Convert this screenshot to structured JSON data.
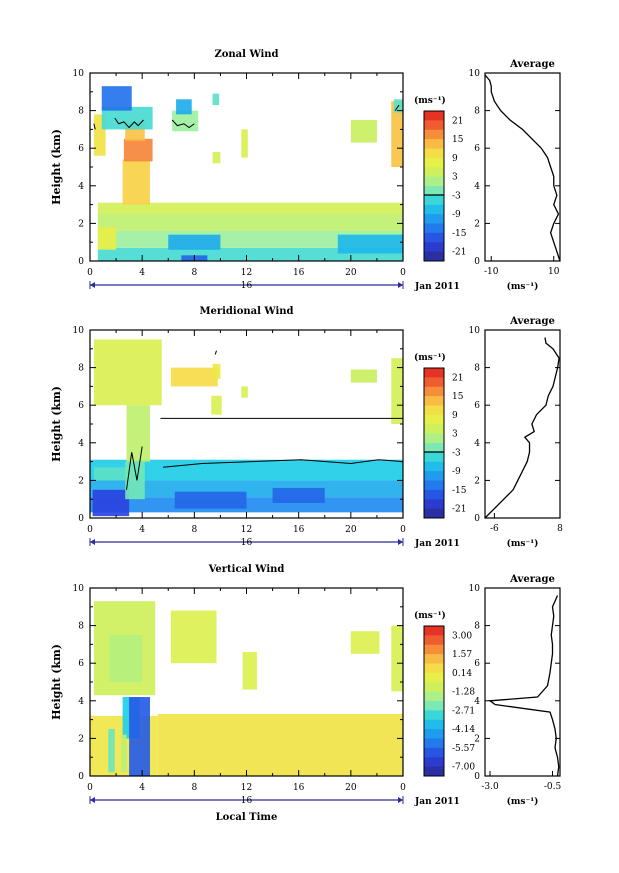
{
  "chart_data": [
    {
      "type": "heatmap",
      "title": "Zonal Wind",
      "ylabel": "Height (km)",
      "xlim": [
        0,
        24
      ],
      "ylim": [
        0,
        10
      ],
      "xticks": [
        "0",
        "4",
        "8",
        "12",
        "16",
        "20",
        "0"
      ],
      "yticks": [
        "0",
        "2",
        "4",
        "6",
        "8",
        "10"
      ],
      "date_label": "16",
      "date_suffix": "Jan 2011",
      "colorbar": {
        "unit": "(ms⁻¹)",
        "ticks": [
          "21",
          "15",
          "9",
          "3",
          "-3",
          "-9",
          "-15",
          "-21"
        ],
        "range": [
          -24,
          24
        ]
      },
      "patches": [
        {
          "x": [
            0.6,
            24
          ],
          "y": [
            0,
            0.7
          ],
          "v": -4
        },
        {
          "x": [
            0.6,
            24
          ],
          "y": [
            0.7,
            1.6
          ],
          "v": 0
        },
        {
          "x": [
            0.6,
            24
          ],
          "y": [
            1.6,
            2.5
          ],
          "v": 3
        },
        {
          "x": [
            0.6,
            24
          ],
          "y": [
            2.5,
            3.1
          ],
          "v": 5
        },
        {
          "x": [
            0.6,
            2
          ],
          "y": [
            0.6,
            1.8
          ],
          "v": 8
        },
        {
          "x": [
            6,
            10
          ],
          "y": [
            0.6,
            1.4
          ],
          "v": -9
        },
        {
          "x": [
            19,
            24
          ],
          "y": [
            0.4,
            1.4
          ],
          "v": -8
        },
        {
          "x": [
            2.5,
            4.6
          ],
          "y": [
            3.0,
            5.4
          ],
          "v": 12
        },
        {
          "x": [
            2.6,
            4.8
          ],
          "y": [
            5.3,
            6.5
          ],
          "v": 17
        },
        {
          "x": [
            2.7,
            4.2
          ],
          "y": [
            6.4,
            7.4
          ],
          "v": 13
        },
        {
          "x": [
            0.3,
            1.2
          ],
          "y": [
            5.6,
            7.8
          ],
          "v": 10
        },
        {
          "x": [
            0.9,
            4.8
          ],
          "y": [
            7.0,
            8.2
          ],
          "v": -4
        },
        {
          "x": [
            0.9,
            3.2
          ],
          "y": [
            8.0,
            9.3
          ],
          "v": -14
        },
        {
          "x": [
            6.3,
            8.3
          ],
          "y": [
            6.9,
            8.0
          ],
          "v": 0
        },
        {
          "x": [
            6.6,
            7.8
          ],
          "y": [
            7.8,
            8.6
          ],
          "v": -9
        },
        {
          "x": [
            9.4,
            9.9
          ],
          "y": [
            8.3,
            8.9
          ],
          "v": -3
        },
        {
          "x": [
            11.6,
            12.1
          ],
          "y": [
            5.5,
            7.0
          ],
          "v": 6
        },
        {
          "x": [
            9.4,
            10.0
          ],
          "y": [
            5.2,
            5.8
          ],
          "v": 5
        },
        {
          "x": [
            20,
            22
          ],
          "y": [
            6.3,
            7.5
          ],
          "v": 4
        },
        {
          "x": [
            23.1,
            24
          ],
          "y": [
            5.0,
            8.5
          ],
          "v": 13
        },
        {
          "x": [
            23.3,
            24
          ],
          "y": [
            7.9,
            8.6
          ],
          "v": -3
        },
        {
          "x": [
            7,
            9
          ],
          "y": [
            0,
            0.3
          ],
          "v": -15
        }
      ],
      "contours": [
        {
          "x": [
            1.9,
            2.2,
            2.6,
            3.0,
            3.4,
            3.7,
            4.1
          ],
          "y": [
            7.6,
            7.3,
            7.4,
            7.1,
            7.4,
            7.2,
            7.5
          ]
        },
        {
          "x": [
            6.3,
            6.7,
            7.2,
            7.6,
            8.0
          ],
          "y": [
            7.5,
            7.2,
            7.3,
            7.1,
            7.3
          ]
        },
        {
          "x": [
            0.3,
            0.4
          ],
          "y": [
            7.3,
            7.0
          ]
        },
        {
          "x": [
            23.4,
            23.7
          ],
          "y": [
            8.0,
            8.3
          ]
        }
      ],
      "average": {
        "xlabel": "(ms⁻¹)",
        "xlim": [
          -12,
          12
        ],
        "xticks": [
          "-10",
          "10"
        ],
        "profile_x": [
          12,
          11,
          10,
          9,
          10,
          11.5,
          10,
          11,
          10,
          10,
          9,
          8,
          6,
          3,
          0,
          -4,
          -7,
          -9,
          -10,
          -10,
          -10.5,
          -12
        ],
        "profile_y": [
          0,
          0.5,
          1,
          1.5,
          2,
          2.5,
          3,
          3.5,
          4,
          4.5,
          5,
          5.5,
          6,
          6.5,
          7,
          7.5,
          8,
          8.5,
          9,
          9.3,
          9.6,
          9.9
        ]
      }
    },
    {
      "type": "heatmap",
      "title": "Meridional Wind",
      "ylabel": "Height (km)",
      "xlim": [
        0,
        24
      ],
      "ylim": [
        0,
        10
      ],
      "xticks": [
        "0",
        "4",
        "8",
        "12",
        "16",
        "20",
        "0"
      ],
      "yticks": [
        "0",
        "2",
        "4",
        "6",
        "8",
        "10"
      ],
      "date_label": "16",
      "date_suffix": "Jan 2011",
      "colorbar": {
        "unit": "(ms⁻¹)",
        "ticks": [
          "21",
          "15",
          "9",
          "3",
          "-3",
          "-9",
          "-15",
          "-21"
        ],
        "range": [
          -24,
          24
        ]
      },
      "patches": [
        {
          "x": [
            0,
            24
          ],
          "y": [
            2.0,
            3.1
          ],
          "v": -6
        },
        {
          "x": [
            0,
            24
          ],
          "y": [
            1.1,
            2.0
          ],
          "v": -9
        },
        {
          "x": [
            0,
            24
          ],
          "y": [
            0.3,
            1.1
          ],
          "v": -12
        },
        {
          "x": [
            0.2,
            3.0
          ],
          "y": [
            0.1,
            1.5
          ],
          "v": -18
        },
        {
          "x": [
            6.5,
            12
          ],
          "y": [
            0.5,
            1.4
          ],
          "v": -15
        },
        {
          "x": [
            14,
            18
          ],
          "y": [
            0.8,
            1.6
          ],
          "v": -15
        },
        {
          "x": [
            0.3,
            3.2
          ],
          "y": [
            2.0,
            2.7
          ],
          "v": -3
        },
        {
          "x": [
            2.8,
            4.6
          ],
          "y": [
            3.0,
            6.0
          ],
          "v": 3
        },
        {
          "x": [
            2.7,
            4.2
          ],
          "y": [
            1.0,
            3.0
          ],
          "v": -2
        },
        {
          "x": [
            0.3,
            5.5
          ],
          "y": [
            6.0,
            9.5
          ],
          "v": 6
        },
        {
          "x": [
            6.2,
            9.8
          ],
          "y": [
            7.0,
            8.0
          ],
          "v": 11
        },
        {
          "x": [
            9.4,
            10.0
          ],
          "y": [
            7.4,
            8.2
          ],
          "v": 9
        },
        {
          "x": [
            9.3,
            10.1
          ],
          "y": [
            5.5,
            6.5
          ],
          "v": 6
        },
        {
          "x": [
            11.6,
            12.1
          ],
          "y": [
            6.4,
            7.0
          ],
          "v": 6
        },
        {
          "x": [
            20,
            22
          ],
          "y": [
            7.2,
            7.9
          ],
          "v": 4
        },
        {
          "x": [
            23.1,
            24
          ],
          "y": [
            5.0,
            8.5
          ],
          "v": 5
        }
      ],
      "contours": [
        {
          "x": [
            5.4,
            24
          ],
          "y": [
            5.3,
            5.3
          ]
        },
        {
          "x": [
            5.6,
            8.6,
            12.4,
            16.2,
            20.0,
            22.1,
            24.0
          ],
          "y": [
            2.7,
            2.9,
            3.0,
            3.1,
            2.9,
            3.1,
            3.0
          ]
        },
        {
          "x": [
            2.8,
            3.2,
            3.6,
            4.0
          ],
          "y": [
            1.5,
            3.5,
            2.0,
            3.8
          ]
        },
        {
          "x": [
            9.6,
            9.7
          ],
          "y": [
            8.7,
            8.9
          ]
        }
      ],
      "average": {
        "xlabel": "(ms⁻¹)",
        "xlim": [
          -8,
          8
        ],
        "xticks": [
          "-6",
          "8"
        ],
        "profile_x": [
          -8,
          -6,
          -4,
          -2,
          -1,
          0,
          1,
          1.5,
          1.5,
          0.5,
          2.5,
          2.0,
          3.0,
          5,
          5.5,
          6.5,
          7,
          7.5,
          7.8,
          6.5,
          5.0,
          4.8
        ],
        "profile_y": [
          0,
          0.5,
          1,
          1.5,
          2,
          2.5,
          3,
          3.5,
          4,
          4.3,
          4.6,
          5.0,
          5.5,
          6,
          6.5,
          7,
          7.5,
          8,
          8.5,
          9,
          9.3,
          9.6
        ]
      }
    },
    {
      "type": "heatmap",
      "title": "Vertical Wind",
      "ylabel": "Height (km)",
      "xlabel": "Local Time",
      "xlim": [
        0,
        24
      ],
      "ylim": [
        0,
        10
      ],
      "xticks": [
        "0",
        "4",
        "8",
        "12",
        "16",
        "20",
        "0"
      ],
      "yticks": [
        "0",
        "2",
        "4",
        "6",
        "8",
        "10"
      ],
      "date_label": "16",
      "date_suffix": "Jan 2011",
      "colorbar": {
        "unit": "(ms⁻¹)",
        "ticks": [
          "3.00",
          "1.57",
          "0.14",
          "-1.28",
          "-2.71",
          "-4.14",
          "-5.57",
          "-7.00"
        ],
        "range": [
          -7.7,
          3.7
        ]
      },
      "patches": [
        {
          "x": [
            0,
            5.2
          ],
          "y": [
            0,
            3.2
          ],
          "v": 0.2
        },
        {
          "x": [
            5.2,
            24
          ],
          "y": [
            0,
            3.3
          ],
          "v": 0.3
        },
        {
          "x": [
            0.3,
            5.0
          ],
          "y": [
            4.3,
            9.3
          ],
          "v": -0.9
        },
        {
          "x": [
            1.5,
            4.0
          ],
          "y": [
            5.0,
            7.5
          ],
          "v": -1.5
        },
        {
          "x": [
            2.5,
            3.8
          ],
          "y": [
            2.0,
            4.2
          ],
          "v": -3.4
        },
        {
          "x": [
            3.0,
            4.6
          ],
          "y": [
            0,
            4.2
          ],
          "v": -5.8
        },
        {
          "x": [
            1.4,
            1.9
          ],
          "y": [
            0.2,
            2.5
          ],
          "v": -2.5
        },
        {
          "x": [
            2.4,
            2.8
          ],
          "y": [
            0.2,
            2.2
          ],
          "v": -1.4
        },
        {
          "x": [
            6.2,
            9.7
          ],
          "y": [
            6.0,
            8.8
          ],
          "v": -0.5
        },
        {
          "x": [
            11.7,
            12.8
          ],
          "y": [
            4.6,
            6.6
          ],
          "v": -0.5
        },
        {
          "x": [
            20,
            22.2
          ],
          "y": [
            6.5,
            7.7
          ],
          "v": -0.5
        },
        {
          "x": [
            23.1,
            24
          ],
          "y": [
            4.5,
            8.0
          ],
          "v": -0.6
        }
      ],
      "contours": [],
      "average": {
        "xlabel": "(ms⁻¹)",
        "xlim": [
          -3.2,
          -0.2
        ],
        "xticks": [
          "-3.0",
          "-0.5"
        ],
        "profile_x": [
          -0.3,
          -0.25,
          -0.3,
          -0.4,
          -0.35,
          -0.4,
          -0.5,
          -0.6,
          -2.8,
          -3.0,
          -1.1,
          -0.7,
          -0.6,
          -0.55,
          -0.5,
          -0.5,
          -0.55,
          -0.5,
          -0.45,
          -0.5,
          -0.3
        ],
        "profile_y": [
          0,
          0.5,
          1,
          1.5,
          2,
          2.5,
          3,
          3.4,
          3.8,
          4.0,
          4.2,
          4.8,
          5.5,
          6,
          6.5,
          7,
          7.5,
          8,
          8.5,
          9,
          9.6
        ]
      }
    }
  ]
}
